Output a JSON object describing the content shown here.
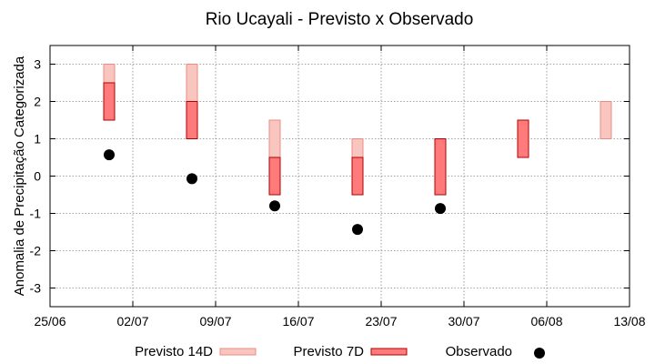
{
  "chart_data": {
    "type": "range-bar-scatter",
    "title": "Rio Ucayali - Previsto x Observado",
    "xlabel": "",
    "ylabel": "Anomalia de Precipitação Categorizada",
    "xlim": [
      "25/06",
      "13/08"
    ],
    "ylim": [
      -3.5,
      3.5
    ],
    "x_ticks": [
      "25/06",
      "02/07",
      "09/07",
      "16/07",
      "23/07",
      "30/07",
      "06/08",
      "13/08"
    ],
    "y_ticks": [
      3,
      2,
      1,
      0,
      -1,
      -2,
      -3
    ],
    "grid": true,
    "legend_placement": "bottom",
    "series": [
      {
        "name": "Previsto 14D",
        "color_fill": "#f9c6bf",
        "color_edge": "#e88d86",
        "points": [
          {
            "x": "30/06",
            "low": 1.5,
            "high": 3.0
          },
          {
            "x": "07/07",
            "low": 1.0,
            "high": 3.0
          },
          {
            "x": "14/07",
            "low": 0.5,
            "high": 1.5
          },
          {
            "x": "21/07",
            "low": 0.0,
            "high": 1.0
          },
          {
            "x": "11/08",
            "low": 1.0,
            "high": 2.0
          }
        ]
      },
      {
        "name": "Previsto 7D",
        "color_fill": "#ff7b7b",
        "color_edge": "#b00000",
        "points": [
          {
            "x": "30/06",
            "low": 1.5,
            "high": 2.5
          },
          {
            "x": "07/07",
            "low": 1.0,
            "high": 2.0
          },
          {
            "x": "14/07",
            "low": -0.5,
            "high": 0.5
          },
          {
            "x": "21/07",
            "low": -0.5,
            "high": 0.5
          },
          {
            "x": "28/07",
            "low": -0.5,
            "high": 1.0
          },
          {
            "x": "04/08",
            "low": 0.5,
            "high": 1.5
          }
        ]
      },
      {
        "name": "Observado",
        "color": "#000000",
        "points": [
          {
            "x": "30/06",
            "y": 0.57
          },
          {
            "x": "07/07",
            "y": -0.07
          },
          {
            "x": "14/07",
            "y": -0.8
          },
          {
            "x": "21/07",
            "y": -1.43
          },
          {
            "x": "28/07",
            "y": -0.87
          }
        ]
      }
    ]
  }
}
